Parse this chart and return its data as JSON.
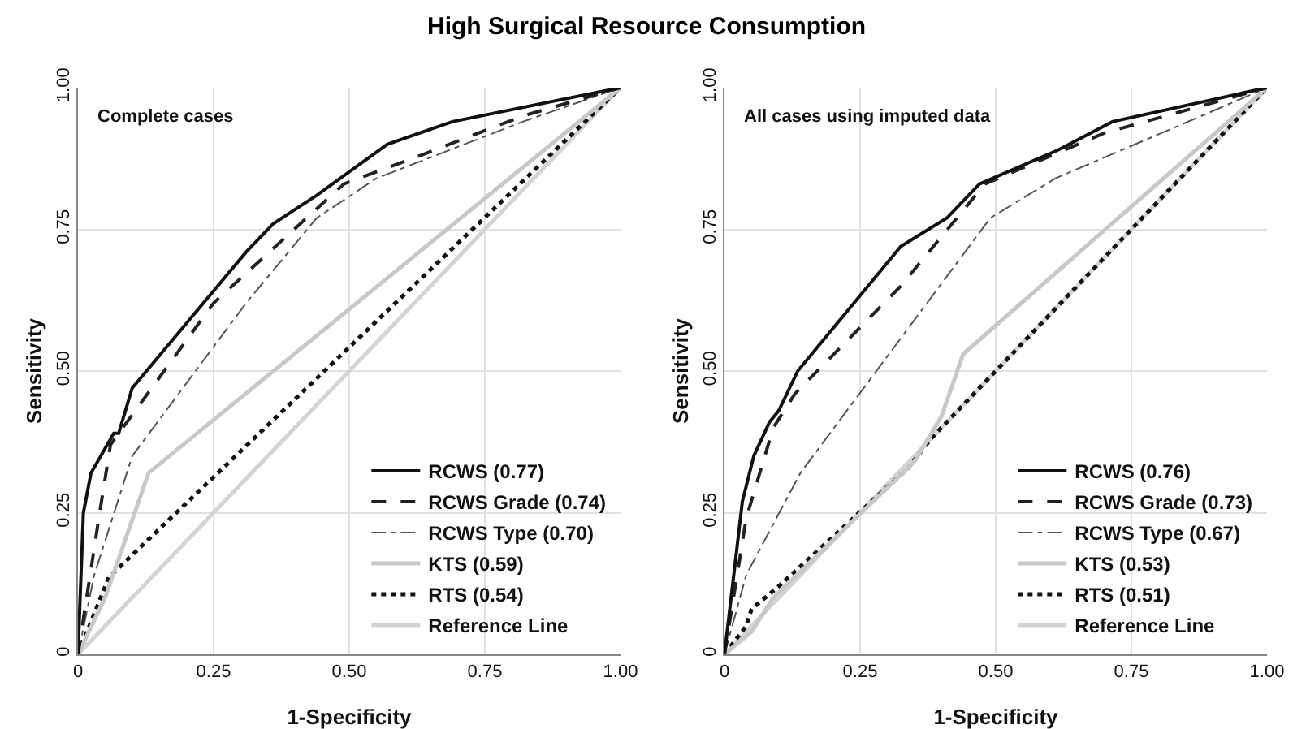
{
  "chart_data": [
    {
      "type": "line",
      "title": "High Surgical Resource Consumption",
      "xlabel": "1-Specificity",
      "ylabel": "Sensitivity",
      "annotations": [
        "Complete cases"
      ],
      "xlim": [
        0,
        1
      ],
      "ylim": [
        0,
        1
      ],
      "xticks": [
        0,
        {
          "value": 0.25,
          "label": "0.25"
        },
        {
          "value": 0.5,
          "label": "0.50"
        },
        {
          "value": 0.75,
          "label": "0.75"
        },
        {
          "value": 1,
          "label": "1.00"
        }
      ],
      "yticks": [
        0,
        {
          "value": 0.25,
          "label": "0.25"
        },
        {
          "value": 0.5,
          "label": "0.50"
        },
        {
          "value": 0.75,
          "label": "0.75"
        },
        {
          "value": 1,
          "label": "1.00"
        }
      ],
      "grid": true,
      "legend": "bottom right",
      "marker": "none",
      "series": [
        {
          "name": "RCWS (0.77)",
          "color": "#111111",
          "line_style": "solid",
          "x": [
            0,
            0.01,
            0.024,
            0.066,
            0.075,
            0.1,
            0.31,
            0.36,
            0.44,
            0.57,
            0.69,
            1
          ],
          "values": [
            0,
            0.25,
            0.32,
            0.39,
            0.39,
            0.47,
            0.71,
            0.76,
            0.81,
            0.9,
            0.94,
            1
          ]
        },
        {
          "name": "RCWS Grade (0.74)",
          "color": "#222222",
          "line_style": "dashed",
          "x": [
            0,
            0.04,
            0.06,
            0.25,
            0.49,
            0.63,
            0.82,
            1
          ],
          "values": [
            0,
            0.25,
            0.37,
            0.62,
            0.83,
            0.88,
            0.95,
            1
          ]
        },
        {
          "name": "RCWS Type (0.70)",
          "color": "#555555",
          "line_style": "dashdot",
          "x": [
            0,
            0.03,
            0.1,
            0.31,
            0.44,
            0.55,
            0.82,
            1
          ],
          "values": [
            0,
            0.14,
            0.35,
            0.62,
            0.77,
            0.84,
            0.94,
            1
          ]
        },
        {
          "name": "KTS (0.59)",
          "color": "#c8c8c8",
          "line_style": "solid",
          "x": [
            0,
            0.05,
            0.13,
            1
          ],
          "values": [
            0,
            0.1,
            0.32,
            1
          ]
        },
        {
          "name": "RTS (0.54)",
          "color": "#111111",
          "line_style": "dotted",
          "x": [
            0,
            0.057,
            1
          ],
          "values": [
            0,
            0.136,
            1
          ]
        },
        {
          "name": "Reference Line",
          "color": "#d4d4d4",
          "line_style": "solid",
          "x": [
            0,
            1
          ],
          "values": [
            0,
            1
          ]
        }
      ]
    },
    {
      "type": "line",
      "xlabel": "1-Specificity",
      "ylabel": "Sensitivity",
      "annotations": [
        "All cases using imputed data"
      ],
      "xlim": [
        0,
        1
      ],
      "ylim": [
        0,
        1
      ],
      "xticks": [
        0,
        {
          "value": 0.25,
          "label": "0.25"
        },
        {
          "value": 0.5,
          "label": "0.50"
        },
        {
          "value": 0.75,
          "label": "0.75"
        },
        {
          "value": 1,
          "label": "1.00"
        }
      ],
      "yticks": [
        0,
        {
          "value": 0.25,
          "label": "0.25"
        },
        {
          "value": 0.5,
          "label": "0.50"
        },
        {
          "value": 0.75,
          "label": "0.75"
        },
        {
          "value": 1,
          "label": "1.00"
        }
      ],
      "grid": true,
      "legend": "bottom right",
      "marker": "none",
      "series": [
        {
          "name": "RCWS (0.76)",
          "color": "#111111",
          "line_style": "solid",
          "x": [
            0,
            0.033,
            0.054,
            0.083,
            0.1,
            0.135,
            0.325,
            0.41,
            0.47,
            0.615,
            0.715,
            1
          ],
          "values": [
            0,
            0.27,
            0.35,
            0.41,
            0.43,
            0.5,
            0.72,
            0.77,
            0.83,
            0.89,
            0.94,
            1
          ]
        },
        {
          "name": "RCWS Grade (0.73)",
          "color": "#222222",
          "line_style": "dashed",
          "x": [
            0,
            0.04,
            0.09,
            0.13,
            0.325,
            0.48,
            0.7,
            1
          ],
          "values": [
            0,
            0.24,
            0.4,
            0.46,
            0.65,
            0.83,
            0.92,
            1
          ]
        },
        {
          "name": "RCWS Type (0.67)",
          "color": "#555555",
          "line_style": "dashdot",
          "x": [
            0,
            0.04,
            0.14,
            0.49,
            0.61,
            0.83,
            1
          ],
          "values": [
            0,
            0.14,
            0.32,
            0.77,
            0.84,
            0.93,
            1
          ]
        },
        {
          "name": "KTS (0.53)",
          "color": "#c8c8c8",
          "line_style": "solid",
          "x": [
            0,
            0.05,
            0.09,
            0.35,
            0.4,
            0.44,
            1
          ],
          "values": [
            0,
            0.04,
            0.1,
            0.34,
            0.42,
            0.53,
            1
          ]
        },
        {
          "name": "RTS (0.51)",
          "color": "#111111",
          "line_style": "dotted",
          "x": [
            0,
            0.04,
            0.05,
            0.1,
            0.34,
            0.38,
            1
          ],
          "values": [
            0,
            0.05,
            0.08,
            0.12,
            0.33,
            0.38,
            1
          ]
        },
        {
          "name": "Reference Line",
          "color": "#d4d4d4",
          "line_style": "solid",
          "x": [
            0,
            1
          ],
          "values": [
            0,
            1
          ]
        }
      ]
    }
  ]
}
